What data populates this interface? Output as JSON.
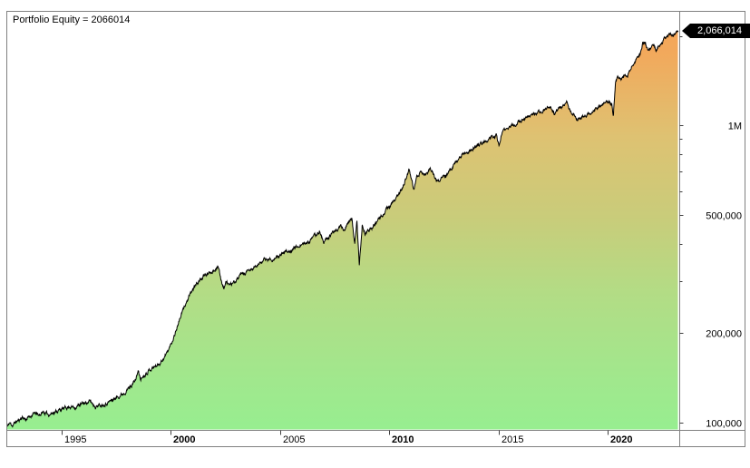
{
  "window": {
    "bg_color": "#FFFFFF",
    "frame_color": "#808080",
    "tick_color": "#404040"
  },
  "chart_data": {
    "type": "area",
    "title": "Portfolio Equity = 2066014",
    "series_name": "Portfolio Equity",
    "last_value": 2066014,
    "last_value_label": "2,066,014",
    "y_scale": "log",
    "grid": false,
    "legend": null,
    "line_color": "#000000",
    "badge": {
      "bg": "#000000",
      "text": "#FFFFFF"
    },
    "x_range": [
      1992.5,
      2023.28
    ],
    "y_range": [
      94500,
      2414000
    ],
    "x_ticks": [
      {
        "year": 1995,
        "label": "1995",
        "bold": false
      },
      {
        "year": 2000,
        "label": "2000",
        "bold": true
      },
      {
        "year": 2005,
        "label": "2005",
        "bold": false
      },
      {
        "year": 2010,
        "label": "2010",
        "bold": true
      },
      {
        "year": 2015,
        "label": "2015",
        "bold": false
      },
      {
        "year": 2020,
        "label": "2020",
        "bold": true
      }
    ],
    "y_ticks_major": [
      {
        "value": 100000,
        "label": "100,000"
      },
      {
        "value": 200000,
        "label": "200,000"
      },
      {
        "value": 500000,
        "label": "500,000"
      },
      {
        "value": 1000000,
        "label": "1M"
      }
    ],
    "y_ticks_minor": [
      300000,
      400000,
      600000,
      700000,
      800000,
      900000,
      2000000
    ],
    "gradient": [
      {
        "offset": 0.0,
        "color": "#F6A355"
      },
      {
        "offset": 0.1,
        "color": "#F2A95C"
      },
      {
        "offset": 0.3,
        "color": "#DEC272"
      },
      {
        "offset": 0.49,
        "color": "#C9CC7A"
      },
      {
        "offset": 0.67,
        "color": "#B3DC85"
      },
      {
        "offset": 0.85,
        "color": "#A3E68C"
      },
      {
        "offset": 1.0,
        "color": "#97EE90"
      }
    ],
    "texture": {
      "seed": 11,
      "amp": 0.018,
      "decay": 0.78,
      "step_years": 0.012
    },
    "series": [
      {
        "name": "Portfolio Equity",
        "anchors": [
          [
            1992.5,
            97000
          ],
          [
            1992.62,
            99500
          ],
          [
            1992.75,
            98000
          ],
          [
            1992.9,
            100500
          ],
          [
            1993.05,
            102000
          ],
          [
            1993.2,
            104500
          ],
          [
            1993.35,
            102500
          ],
          [
            1993.55,
            105000
          ],
          [
            1993.75,
            107500
          ],
          [
            1993.95,
            106000
          ],
          [
            1994.15,
            108500
          ],
          [
            1994.4,
            106500
          ],
          [
            1994.65,
            108500
          ],
          [
            1994.85,
            110000
          ],
          [
            1995.1,
            111500
          ],
          [
            1995.35,
            113500
          ],
          [
            1995.6,
            112500
          ],
          [
            1995.85,
            115000
          ],
          [
            1996.1,
            116500
          ],
          [
            1996.3,
            118000
          ],
          [
            1996.55,
            113500
          ],
          [
            1996.8,
            115000
          ],
          [
            1997.05,
            116500
          ],
          [
            1997.3,
            119000
          ],
          [
            1997.55,
            122000
          ],
          [
            1997.8,
            125500
          ],
          [
            1998.0,
            129000
          ],
          [
            1998.2,
            134000
          ],
          [
            1998.38,
            139000
          ],
          [
            1998.5,
            149000
          ],
          [
            1998.62,
            140000
          ],
          [
            1998.78,
            144500
          ],
          [
            1998.95,
            149500
          ],
          [
            1999.1,
            152000
          ],
          [
            1999.3,
            155000
          ],
          [
            1999.5,
            159000
          ],
          [
            1999.7,
            166000
          ],
          [
            1999.88,
            175000
          ],
          [
            2000.05,
            187000
          ],
          [
            2000.25,
            206000
          ],
          [
            2000.45,
            228000
          ],
          [
            2000.65,
            249000
          ],
          [
            2000.85,
            266000
          ],
          [
            2001.05,
            284000
          ],
          [
            2001.25,
            298000
          ],
          [
            2001.45,
            308000
          ],
          [
            2001.65,
            315000
          ],
          [
            2001.85,
            322000
          ],
          [
            2002.05,
            331000
          ],
          [
            2002.15,
            337000
          ],
          [
            2002.28,
            306000
          ],
          [
            2002.42,
            285000
          ],
          [
            2002.55,
            299000
          ],
          [
            2002.7,
            289000
          ],
          [
            2002.85,
            294000
          ],
          [
            2003.0,
            301000
          ],
          [
            2003.2,
            313000
          ],
          [
            2003.45,
            319000
          ],
          [
            2003.7,
            328000
          ],
          [
            2003.95,
            337000
          ],
          [
            2004.2,
            352000
          ],
          [
            2004.45,
            354000
          ],
          [
            2004.7,
            357000
          ],
          [
            2004.95,
            362000
          ],
          [
            2005.25,
            374000
          ],
          [
            2005.55,
            383000
          ],
          [
            2005.8,
            392000
          ],
          [
            2006.05,
            398000
          ],
          [
            2006.3,
            406000
          ],
          [
            2006.55,
            421000
          ],
          [
            2006.8,
            440000
          ],
          [
            2007.0,
            406000
          ],
          [
            2007.2,
            416000
          ],
          [
            2007.4,
            434000
          ],
          [
            2007.6,
            448000
          ],
          [
            2007.78,
            459000
          ],
          [
            2007.95,
            443000
          ],
          [
            2008.1,
            470000
          ],
          [
            2008.28,
            490000
          ],
          [
            2008.42,
            400000
          ],
          [
            2008.52,
            478000
          ],
          [
            2008.63,
            336000
          ],
          [
            2008.76,
            464000
          ],
          [
            2008.9,
            430000
          ],
          [
            2009.05,
            441000
          ],
          [
            2009.25,
            458000
          ],
          [
            2009.45,
            473000
          ],
          [
            2009.7,
            500000
          ],
          [
            2009.95,
            528000
          ],
          [
            2010.2,
            553000
          ],
          [
            2010.45,
            592000
          ],
          [
            2010.7,
            638000
          ],
          [
            2010.9,
            707000
          ],
          [
            2011.05,
            650000
          ],
          [
            2011.12,
            606000
          ],
          [
            2011.25,
            672000
          ],
          [
            2011.42,
            700000
          ],
          [
            2011.6,
            687000
          ],
          [
            2011.78,
            700000
          ],
          [
            2011.92,
            708000
          ],
          [
            2012.05,
            673000
          ],
          [
            2012.18,
            651000
          ],
          [
            2012.38,
            667000
          ],
          [
            2012.6,
            673000
          ],
          [
            2012.85,
            722000
          ],
          [
            2013.1,
            760000
          ],
          [
            2013.4,
            799000
          ],
          [
            2013.7,
            828000
          ],
          [
            2014.0,
            852000
          ],
          [
            2014.3,
            878000
          ],
          [
            2014.6,
            902000
          ],
          [
            2014.9,
            927000
          ],
          [
            2015.03,
            853000
          ],
          [
            2015.18,
            950000
          ],
          [
            2015.45,
            980000
          ],
          [
            2015.7,
            1006000
          ],
          [
            2015.95,
            1035000
          ],
          [
            2016.25,
            1062000
          ],
          [
            2016.55,
            1088000
          ],
          [
            2016.85,
            1108000
          ],
          [
            2017.1,
            1129000
          ],
          [
            2017.35,
            1149000
          ],
          [
            2017.55,
            1093000
          ],
          [
            2017.75,
            1128000
          ],
          [
            2018.0,
            1180000
          ],
          [
            2018.12,
            1203000
          ],
          [
            2018.35,
            1106000
          ],
          [
            2018.6,
            1048000
          ],
          [
            2018.85,
            1063000
          ],
          [
            2019.1,
            1096000
          ],
          [
            2019.35,
            1123000
          ],
          [
            2019.6,
            1156000
          ],
          [
            2019.85,
            1196000
          ],
          [
            2020.0,
            1213000
          ],
          [
            2020.12,
            1185000
          ],
          [
            2020.2,
            1190000
          ],
          [
            2020.26,
            1060000
          ],
          [
            2020.36,
            1400000
          ],
          [
            2020.5,
            1455000
          ],
          [
            2020.62,
            1425000
          ],
          [
            2020.76,
            1465000
          ],
          [
            2020.9,
            1448000
          ],
          [
            2021.02,
            1505000
          ],
          [
            2021.15,
            1612000
          ],
          [
            2021.35,
            1700000
          ],
          [
            2021.5,
            1747000
          ],
          [
            2021.62,
            1882000
          ],
          [
            2021.72,
            1908000
          ],
          [
            2021.84,
            1783000
          ],
          [
            2021.96,
            1832000
          ],
          [
            2022.1,
            1862000
          ],
          [
            2022.24,
            1796000
          ],
          [
            2022.4,
            1866000
          ],
          [
            2022.55,
            1932000
          ],
          [
            2022.7,
            1987000
          ],
          [
            2022.85,
            2032000
          ],
          [
            2023.0,
            2006000
          ],
          [
            2023.1,
            2046000
          ],
          [
            2023.22,
            2066014
          ]
        ]
      }
    ]
  }
}
